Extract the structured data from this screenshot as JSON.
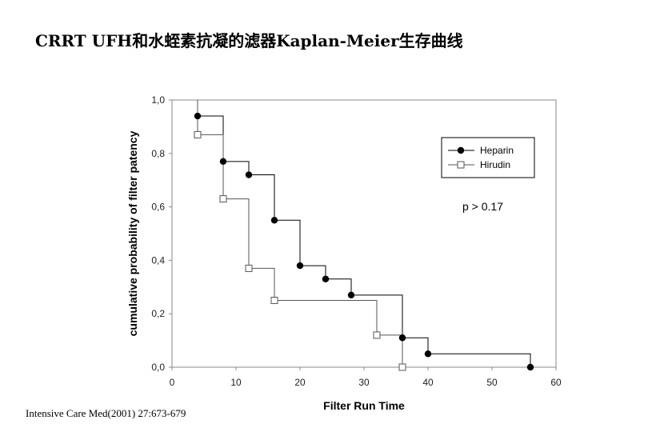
{
  "slide": {
    "title": "CRRT UFH和水蛭素抗凝的滤器Kaplan-Meier生存曲线",
    "citation": "Intensive Care Med(2001) 27:673-679"
  },
  "chart_data": {
    "type": "line",
    "subtype": "kaplan-meier-step",
    "xlabel": "Filter Run Time",
    "ylabel": "cumulative  probability of filter patency",
    "xlim": [
      0,
      60
    ],
    "ylim": [
      0,
      1.0
    ],
    "x_ticks": [
      0,
      10,
      20,
      30,
      40,
      50,
      60
    ],
    "x_tick_labels": [
      "0",
      "10",
      "20",
      "30",
      "40",
      "50",
      "60"
    ],
    "y_ticks": [
      0,
      0.2,
      0.4,
      0.6,
      0.8,
      1.0
    ],
    "y_tick_labels": [
      "0,0",
      "0,2",
      "0,4",
      "0,6",
      "0,8",
      "1,0"
    ],
    "grid": false,
    "legend_position": "top-right",
    "annotation": "p > 0.17",
    "series": [
      {
        "name": "Heparin",
        "marker": "filled-circle",
        "color": "#000000",
        "points": [
          [
            4,
            0.94
          ],
          [
            8,
            0.77
          ],
          [
            12,
            0.72
          ],
          [
            16,
            0.55
          ],
          [
            20,
            0.38
          ],
          [
            24,
            0.33
          ],
          [
            28,
            0.27
          ],
          [
            36,
            0.11
          ],
          [
            40,
            0.05
          ],
          [
            56,
            0.0
          ]
        ]
      },
      {
        "name": "Hirudin",
        "marker": "open-square",
        "color": "#555555",
        "points": [
          [
            4,
            0.87
          ],
          [
            8,
            0.63
          ],
          [
            12,
            0.37
          ],
          [
            16,
            0.25
          ],
          [
            32,
            0.12
          ],
          [
            36,
            0.0
          ]
        ]
      }
    ]
  }
}
